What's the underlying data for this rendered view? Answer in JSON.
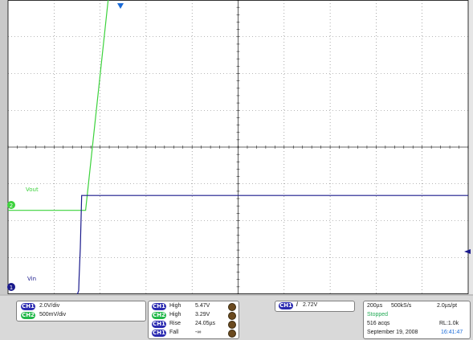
{
  "colors": {
    "ch1": "#1a1a8c",
    "ch2": "#3cd23c",
    "ch1_badge": "#2a2ab0",
    "ch2_badge": "#22b84a",
    "trigger_orange": "#d47a00",
    "grid": "#000000"
  },
  "chart_data": {
    "type": "line",
    "title": "",
    "xlabel": "",
    "ylabel": "",
    "grid": true,
    "xlim": [
      -300,
      1700
    ],
    "ylim_divisions": [
      -4,
      4
    ],
    "time_unit": "µs",
    "series": [
      {
        "name": "Vout",
        "channel": 2,
        "color": "#3cd23c",
        "volts_per_div": 0.5,
        "x": [
          -300,
          37,
          150,
          1700
        ],
        "y": [
          0,
          0,
          3.29,
          3.29
        ]
      },
      {
        "name": "Vin",
        "channel": 1,
        "color": "#1a1a8c",
        "volts_per_div": 2.0,
        "x": [
          -300,
          0,
          7,
          9,
          14,
          20,
          1700
        ],
        "y": [
          0.05,
          0.05,
          0.3,
          1.0,
          2.6,
          5.47,
          5.47
        ]
      }
    ],
    "trace_labels": [
      {
        "text": "Vout",
        "series": "Vout"
      },
      {
        "text": "Vin",
        "series": "Vin"
      }
    ]
  },
  "panel": {
    "channels": [
      {
        "badge": "CH1",
        "scale": "2.0V/div"
      },
      {
        "badge": "CH2",
        "scale": "500mV/div"
      }
    ],
    "measurements": [
      {
        "badge": "CH1",
        "name": "High",
        "value": "5.47V"
      },
      {
        "badge": "CH2",
        "name": "High",
        "value": "3.29V"
      },
      {
        "badge": "CH1",
        "name": "Rise",
        "value": "24.05µs"
      },
      {
        "badge": "CH1",
        "name": "Fall",
        "value": "-∞"
      }
    ],
    "trigger": {
      "badge": "CH1",
      "slope": "/",
      "level": "2.72V"
    },
    "acquisition": {
      "timebase": "200µs",
      "rate": "500kS/s",
      "resolution": "2.0µs/pt",
      "status": "Stopped",
      "acqs": "516 acqs",
      "record_length": "RL:1.0k",
      "date": "September 19, 2008",
      "time": "16:41:47"
    }
  }
}
